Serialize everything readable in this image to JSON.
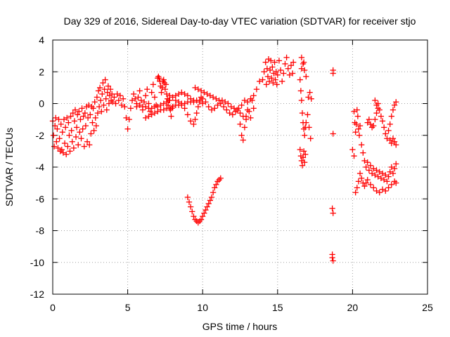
{
  "chart_data": {
    "type": "scatter",
    "title": "Day 329 of 2016, Sidereal Day-to-day VTEC variation (SDTVAR) for receiver stjo",
    "xlabel": "GPS time / hours",
    "ylabel": "SDTVAR / TECUs",
    "xlim": [
      0,
      25
    ],
    "ylim": [
      -12,
      4
    ],
    "xticks": [
      "0",
      "5",
      "10",
      "15",
      "20",
      "25"
    ],
    "yticks": [
      "-12",
      "-10",
      "-8",
      "-6",
      "-4",
      "-2",
      "0",
      "2",
      "4"
    ],
    "grid": true,
    "legend": "none",
    "marker": "plus",
    "color": "#ff0000",
    "points": [
      [
        0.0,
        -1.1
      ],
      [
        0.05,
        -2.0
      ],
      [
        0.1,
        -2.7
      ],
      [
        0.15,
        -1.4
      ],
      [
        0.2,
        -0.9
      ],
      [
        0.25,
        -2.4
      ],
      [
        0.3,
        -1.6
      ],
      [
        0.35,
        -2.8
      ],
      [
        0.4,
        -1.0
      ],
      [
        0.45,
        -2.2
      ],
      [
        0.5,
        -3.0
      ],
      [
        0.55,
        -1.3
      ],
      [
        0.6,
        -2.9
      ],
      [
        0.65,
        -1.8
      ],
      [
        0.7,
        -3.1
      ],
      [
        0.75,
        -1.0
      ],
      [
        0.8,
        -2.5
      ],
      [
        0.85,
        -1.5
      ],
      [
        0.9,
        -3.2
      ],
      [
        0.95,
        -0.9
      ],
      [
        1.0,
        -2.7
      ],
      [
        1.05,
        -1.2
      ],
      [
        1.1,
        -2.0
      ],
      [
        1.15,
        -3.0
      ],
      [
        1.2,
        -0.8
      ],
      [
        1.25,
        -1.7
      ],
      [
        1.3,
        -2.4
      ],
      [
        1.35,
        -0.6
      ],
      [
        1.4,
        -2.8
      ],
      [
        1.45,
        -1.1
      ],
      [
        1.5,
        -0.4
      ],
      [
        1.55,
        -2.1
      ],
      [
        1.6,
        -1.5
      ],
      [
        1.65,
        -0.7
      ],
      [
        1.7,
        -2.6
      ],
      [
        1.75,
        -0.5
      ],
      [
        1.8,
        -1.8
      ],
      [
        1.85,
        -1.0
      ],
      [
        1.9,
        -2.2
      ],
      [
        1.95,
        -0.3
      ],
      [
        2.0,
        -1.6
      ],
      [
        2.05,
        -0.8
      ],
      [
        2.1,
        -2.7
      ],
      [
        2.15,
        -0.6
      ],
      [
        2.2,
        -1.4
      ],
      [
        2.25,
        -0.2
      ],
      [
        2.3,
        -2.4
      ],
      [
        2.35,
        -0.9
      ],
      [
        2.4,
        -0.1
      ],
      [
        2.45,
        -2.6
      ],
      [
        2.5,
        -0.7
      ],
      [
        2.55,
        -1.9
      ],
      [
        2.6,
        -0.2
      ],
      [
        2.65,
        -1.2
      ],
      [
        2.7,
        -0.3
      ],
      [
        2.75,
        -1.7
      ],
      [
        2.8,
        0.1
      ],
      [
        2.85,
        -0.9
      ],
      [
        2.9,
        -1.4
      ],
      [
        2.95,
        0.4
      ],
      [
        3.0,
        -0.6
      ],
      [
        3.05,
        0.8
      ],
      [
        3.1,
        -0.2
      ],
      [
        3.15,
        1.0
      ],
      [
        3.2,
        0.2
      ],
      [
        3.25,
        -0.5
      ],
      [
        3.3,
        0.6
      ],
      [
        3.35,
        1.3
      ],
      [
        3.4,
        -0.1
      ],
      [
        3.45,
        0.9
      ],
      [
        3.5,
        1.5
      ],
      [
        3.55,
        0.3
      ],
      [
        3.6,
        -0.4
      ],
      [
        3.65,
        0.7
      ],
      [
        3.7,
        1.1
      ],
      [
        3.75,
        0.0
      ],
      [
        3.8,
        0.5
      ],
      [
        3.85,
        0.9
      ],
      [
        3.9,
        0.2
      ],
      [
        3.95,
        0.6
      ],
      [
        4.0,
        0.1
      ],
      [
        4.1,
        0.4
      ],
      [
        4.2,
        0.0
      ],
      [
        4.3,
        0.6
      ],
      [
        4.4,
        0.2
      ],
      [
        4.5,
        0.5
      ],
      [
        4.6,
        -0.1
      ],
      [
        4.7,
        0.3
      ],
      [
        4.8,
        -0.2
      ],
      [
        4.9,
        -0.9
      ],
      [
        5.0,
        -1.6
      ],
      [
        5.1,
        -1.0
      ],
      [
        5.2,
        -0.3
      ],
      [
        5.3,
        0.2
      ],
      [
        5.4,
        0.6
      ],
      [
        5.5,
        0.3
      ],
      [
        5.6,
        -0.2
      ],
      [
        5.7,
        0.4
      ],
      [
        5.8,
        0.8
      ],
      [
        5.9,
        0.2
      ],
      [
        6.0,
        -0.4
      ],
      [
        6.1,
        0.1
      ],
      [
        6.2,
        0.5
      ],
      [
        6.3,
        0.9
      ],
      [
        6.4,
        0.0
      ],
      [
        6.5,
        -0.5
      ],
      [
        6.6,
        0.7
      ],
      [
        6.7,
        1.2
      ],
      [
        6.8,
        0.4
      ],
      [
        6.9,
        -0.1
      ],
      [
        7.0,
        1.6
      ],
      [
        7.05,
        1.7
      ],
      [
        7.1,
        1.6
      ],
      [
        7.15,
        1.4
      ],
      [
        7.2,
        1.1
      ],
      [
        7.25,
        0.7
      ],
      [
        7.3,
        1.0
      ],
      [
        7.35,
        1.4
      ],
      [
        7.4,
        1.5
      ],
      [
        7.45,
        1.3
      ],
      [
        7.5,
        0.9
      ],
      [
        7.55,
        1.2
      ],
      [
        7.6,
        0.6
      ],
      [
        7.65,
        0.3
      ],
      [
        7.7,
        -0.1
      ],
      [
        7.75,
        0.2
      ],
      [
        7.8,
        0.5
      ],
      [
        7.85,
        -0.4
      ],
      [
        7.9,
        -0.8
      ],
      [
        7.95,
        -0.3
      ],
      [
        6.2,
        -0.9
      ],
      [
        6.4,
        -0.8
      ],
      [
        6.6,
        -0.7
      ],
      [
        6.8,
        -0.6
      ],
      [
        7.0,
        -0.5
      ],
      [
        7.2,
        -0.4
      ],
      [
        7.4,
        -0.4
      ],
      [
        7.6,
        -0.3
      ],
      [
        7.8,
        -0.3
      ],
      [
        8.0,
        -0.2
      ],
      [
        8.2,
        -0.1
      ],
      [
        8.4,
        -0.1
      ],
      [
        8.6,
        0.0
      ],
      [
        8.8,
        0.0
      ],
      [
        9.0,
        0.1
      ],
      [
        9.2,
        0.1
      ],
      [
        9.4,
        0.2
      ],
      [
        9.6,
        0.2
      ],
      [
        9.8,
        0.1
      ],
      [
        10.0,
        0.0
      ],
      [
        5.6,
        0.0
      ],
      [
        5.8,
        -0.1
      ],
      [
        6.0,
        -0.2
      ],
      [
        6.2,
        -0.2
      ],
      [
        6.4,
        -0.3
      ],
      [
        6.6,
        -0.3
      ],
      [
        6.8,
        -0.2
      ],
      [
        7.0,
        -0.2
      ],
      [
        7.2,
        -0.1
      ],
      [
        7.4,
        0.0
      ],
      [
        7.6,
        0.1
      ],
      [
        7.8,
        0.2
      ],
      [
        8.0,
        0.4
      ],
      [
        8.2,
        0.5
      ],
      [
        8.4,
        0.6
      ],
      [
        8.6,
        0.7
      ],
      [
        8.8,
        0.6
      ],
      [
        9.0,
        0.5
      ],
      [
        9.2,
        0.3
      ],
      [
        9.4,
        0.1
      ],
      [
        8.2,
        0.2
      ],
      [
        8.4,
        0.1
      ],
      [
        8.6,
        -0.1
      ],
      [
        8.8,
        -0.3
      ],
      [
        9.0,
        -0.7
      ],
      [
        9.2,
        -1.1
      ],
      [
        9.4,
        -1.3
      ],
      [
        9.5,
        -1.0
      ],
      [
        9.6,
        -0.6
      ],
      [
        9.7,
        -0.2
      ],
      [
        9.8,
        0.2
      ],
      [
        9.9,
        0.4
      ],
      [
        10.0,
        0.3
      ],
      [
        10.2,
        0.1
      ],
      [
        10.4,
        -0.2
      ],
      [
        10.6,
        -0.4
      ],
      [
        10.8,
        -0.3
      ],
      [
        11.0,
        -0.1
      ],
      [
        11.2,
        0.0
      ],
      [
        11.4,
        -0.2
      ],
      [
        9.5,
        1.0
      ],
      [
        9.7,
        0.9
      ],
      [
        9.9,
        0.8
      ],
      [
        10.1,
        0.7
      ],
      [
        10.3,
        0.6
      ],
      [
        10.5,
        0.5
      ],
      [
        10.7,
        0.4
      ],
      [
        10.9,
        0.3
      ],
      [
        11.1,
        0.2
      ],
      [
        11.3,
        0.2
      ],
      [
        11.5,
        0.1
      ],
      [
        11.7,
        0.0
      ],
      [
        11.9,
        -0.2
      ],
      [
        12.1,
        -0.3
      ],
      [
        12.3,
        -0.4
      ],
      [
        12.5,
        -0.6
      ],
      [
        12.7,
        -0.8
      ],
      [
        12.9,
        -1.0
      ],
      [
        13.1,
        -0.5
      ],
      [
        13.3,
        0.2
      ],
      [
        11.6,
        -0.4
      ],
      [
        11.8,
        -0.6
      ],
      [
        12.0,
        -0.7
      ],
      [
        12.2,
        -0.5
      ],
      [
        12.4,
        -0.3
      ],
      [
        12.6,
        -0.1
      ],
      [
        12.8,
        0.2
      ],
      [
        13.0,
        -0.4
      ],
      [
        13.2,
        -0.9
      ],
      [
        13.4,
        -0.3
      ],
      [
        12.5,
        -1.3
      ],
      [
        12.6,
        -2.0
      ],
      [
        12.7,
        -2.3
      ],
      [
        12.8,
        -1.5
      ],
      [
        12.9,
        -0.8
      ],
      [
        13.0,
        0.1
      ],
      [
        13.2,
        0.3
      ],
      [
        13.4,
        0.5
      ],
      [
        13.6,
        0.9
      ],
      [
        13.8,
        1.4
      ],
      [
        9.0,
        -5.9
      ],
      [
        9.1,
        -6.2
      ],
      [
        9.2,
        -6.5
      ],
      [
        9.3,
        -6.8
      ],
      [
        9.4,
        -7.1
      ],
      [
        9.5,
        -7.3
      ],
      [
        9.6,
        -7.4
      ],
      [
        9.7,
        -7.5
      ],
      [
        9.8,
        -7.4
      ],
      [
        9.9,
        -7.3
      ],
      [
        10.0,
        -7.1
      ],
      [
        10.1,
        -6.9
      ],
      [
        10.2,
        -6.7
      ],
      [
        10.3,
        -6.5
      ],
      [
        10.4,
        -6.3
      ],
      [
        10.5,
        -6.1
      ],
      [
        10.6,
        -5.9
      ],
      [
        10.7,
        -5.6
      ],
      [
        10.8,
        -5.3
      ],
      [
        10.9,
        -5.1
      ],
      [
        11.0,
        -4.9
      ],
      [
        11.1,
        -4.8
      ],
      [
        11.2,
        -4.7
      ],
      [
        14.0,
        1.5
      ],
      [
        14.1,
        2.0
      ],
      [
        14.2,
        2.6
      ],
      [
        14.25,
        1.2
      ],
      [
        14.3,
        2.2
      ],
      [
        14.35,
        1.7
      ],
      [
        14.4,
        2.8
      ],
      [
        14.45,
        1.4
      ],
      [
        14.5,
        2.1
      ],
      [
        14.55,
        2.7
      ],
      [
        14.6,
        1.6
      ],
      [
        14.65,
        2.3
      ],
      [
        14.7,
        1.3
      ],
      [
        14.75,
        1.9
      ],
      [
        14.8,
        2.6
      ],
      [
        14.85,
        1.5
      ],
      [
        14.9,
        2.0
      ],
      [
        14.95,
        1.2
      ],
      [
        15.0,
        1.8
      ],
      [
        15.1,
        2.7
      ],
      [
        15.2,
        2.1
      ],
      [
        15.3,
        1.4
      ],
      [
        15.4,
        1.9
      ],
      [
        15.5,
        2.5
      ],
      [
        15.6,
        2.9
      ],
      [
        15.7,
        2.2
      ],
      [
        15.8,
        1.8
      ],
      [
        15.9,
        2.4
      ],
      [
        16.0,
        1.9
      ],
      [
        16.05,
        2.6
      ],
      [
        16.6,
        2.9
      ],
      [
        16.7,
        2.5
      ],
      [
        16.8,
        2.1
      ],
      [
        16.9,
        1.7
      ],
      [
        16.6,
        2.2
      ],
      [
        16.75,
        2.6
      ],
      [
        16.5,
        1.5
      ],
      [
        16.55,
        0.8
      ],
      [
        16.6,
        0.2
      ],
      [
        16.65,
        -0.6
      ],
      [
        16.7,
        -1.2
      ],
      [
        16.75,
        -1.6
      ],
      [
        16.8,
        -2.0
      ],
      [
        16.85,
        -1.5
      ],
      [
        16.9,
        -1.2
      ],
      [
        16.5,
        -2.9
      ],
      [
        16.55,
        -3.3
      ],
      [
        16.6,
        -3.6
      ],
      [
        16.65,
        -3.9
      ],
      [
        16.7,
        -3.4
      ],
      [
        16.75,
        -3.0
      ],
      [
        16.8,
        -3.7
      ],
      [
        16.85,
        -3.2
      ],
      [
        17.0,
        -0.7
      ],
      [
        17.1,
        -1.5
      ],
      [
        17.2,
        -2.2
      ],
      [
        17.05,
        0.4
      ],
      [
        17.15,
        0.7
      ],
      [
        17.25,
        0.3
      ],
      [
        18.7,
        2.1
      ],
      [
        18.7,
        1.9
      ],
      [
        18.7,
        -1.9
      ],
      [
        18.65,
        -6.6
      ],
      [
        18.7,
        -6.9
      ],
      [
        18.65,
        -9.7
      ],
      [
        18.7,
        -9.9
      ],
      [
        18.65,
        -9.5
      ],
      [
        20.1,
        -0.5
      ],
      [
        20.15,
        -1.2
      ],
      [
        20.2,
        -1.8
      ],
      [
        20.25,
        -1.3
      ],
      [
        20.3,
        -0.4
      ],
      [
        20.35,
        -0.8
      ],
      [
        20.4,
        -1.6
      ],
      [
        20.45,
        -2.0
      ],
      [
        20.5,
        -1.4
      ],
      [
        20.6,
        -2.6
      ],
      [
        20.7,
        -3.1
      ],
      [
        20.8,
        -3.6
      ],
      [
        20.9,
        -4.0
      ],
      [
        21.0,
        -3.7
      ],
      [
        21.1,
        -4.2
      ],
      [
        21.2,
        -3.9
      ],
      [
        21.3,
        -4.4
      ],
      [
        21.4,
        -4.1
      ],
      [
        21.5,
        -4.5
      ],
      [
        21.6,
        -4.2
      ],
      [
        21.7,
        -4.6
      ],
      [
        21.8,
        -4.3
      ],
      [
        21.9,
        -4.7
      ],
      [
        22.0,
        -4.4
      ],
      [
        22.1,
        -4.8
      ],
      [
        22.2,
        -4.5
      ],
      [
        22.3,
        -4.9
      ],
      [
        22.4,
        -4.6
      ],
      [
        22.5,
        -4.3
      ],
      [
        22.6,
        -4.0
      ],
      [
        22.7,
        -4.4
      ],
      [
        22.8,
        -4.1
      ],
      [
        22.9,
        -3.8
      ],
      [
        20.2,
        -5.6
      ],
      [
        20.3,
        -5.3
      ],
      [
        20.4,
        -4.9
      ],
      [
        20.5,
        -4.4
      ],
      [
        20.6,
        -4.7
      ],
      [
        20.7,
        -5.0
      ],
      [
        20.8,
        -5.2
      ],
      [
        20.9,
        -5.0
      ],
      [
        21.0,
        -4.8
      ],
      [
        21.2,
        -5.1
      ],
      [
        21.4,
        -5.3
      ],
      [
        21.6,
        -5.5
      ],
      [
        21.8,
        -5.6
      ],
      [
        22.0,
        -5.4
      ],
      [
        22.2,
        -5.5
      ],
      [
        22.4,
        -5.3
      ],
      [
        22.6,
        -5.1
      ],
      [
        22.8,
        -4.9
      ],
      [
        22.9,
        -5.0
      ],
      [
        21.0,
        -1.2
      ],
      [
        21.1,
        -1.0
      ],
      [
        21.2,
        -1.3
      ],
      [
        21.3,
        -1.5
      ],
      [
        21.4,
        -1.4
      ],
      [
        21.5,
        -1.0
      ],
      [
        21.6,
        -0.6
      ],
      [
        21.7,
        -0.3
      ],
      [
        21.6,
        -0.1
      ],
      [
        21.5,
        0.2
      ],
      [
        21.7,
        0.0
      ],
      [
        21.8,
        -0.4
      ],
      [
        21.9,
        -0.8
      ],
      [
        22.0,
        -1.1
      ],
      [
        22.1,
        -1.5
      ],
      [
        22.2,
        -1.9
      ],
      [
        22.3,
        -2.2
      ],
      [
        22.4,
        -1.7
      ],
      [
        22.5,
        -1.3
      ],
      [
        22.6,
        -0.8
      ],
      [
        22.7,
        -0.4
      ],
      [
        22.8,
        -0.1
      ],
      [
        22.9,
        0.1
      ],
      [
        22.5,
        -2.3
      ],
      [
        22.6,
        -2.5
      ],
      [
        22.7,
        -2.2
      ],
      [
        22.8,
        -2.4
      ],
      [
        22.9,
        -2.6
      ],
      [
        20.0,
        -2.9
      ],
      [
        20.1,
        -3.3
      ]
    ]
  }
}
